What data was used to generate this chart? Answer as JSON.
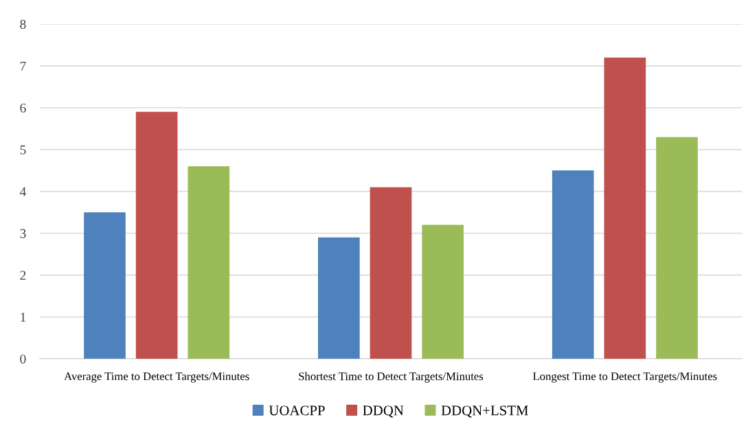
{
  "chart_data": {
    "type": "bar",
    "categories": [
      "Average Time to Detect Targets/Minutes",
      "Shortest Time to Detect Targets/Minutes",
      "Longest Time to Detect Targets/Minutes"
    ],
    "series": [
      {
        "name": "UOACPP",
        "color": "#4f81bd",
        "values": [
          3.5,
          2.9,
          4.5
        ]
      },
      {
        "name": "DDQN",
        "color": "#c0504d",
        "values": [
          5.9,
          4.1,
          7.2
        ]
      },
      {
        "name": "DDQN+LSTM",
        "color": "#9bbb59",
        "values": [
          4.6,
          3.2,
          5.3
        ]
      }
    ],
    "ylim": [
      0,
      8
    ],
    "yticks": [
      0,
      1,
      2,
      3,
      4,
      5,
      6,
      7,
      8
    ],
    "grid": "y",
    "legend": "bottom"
  }
}
